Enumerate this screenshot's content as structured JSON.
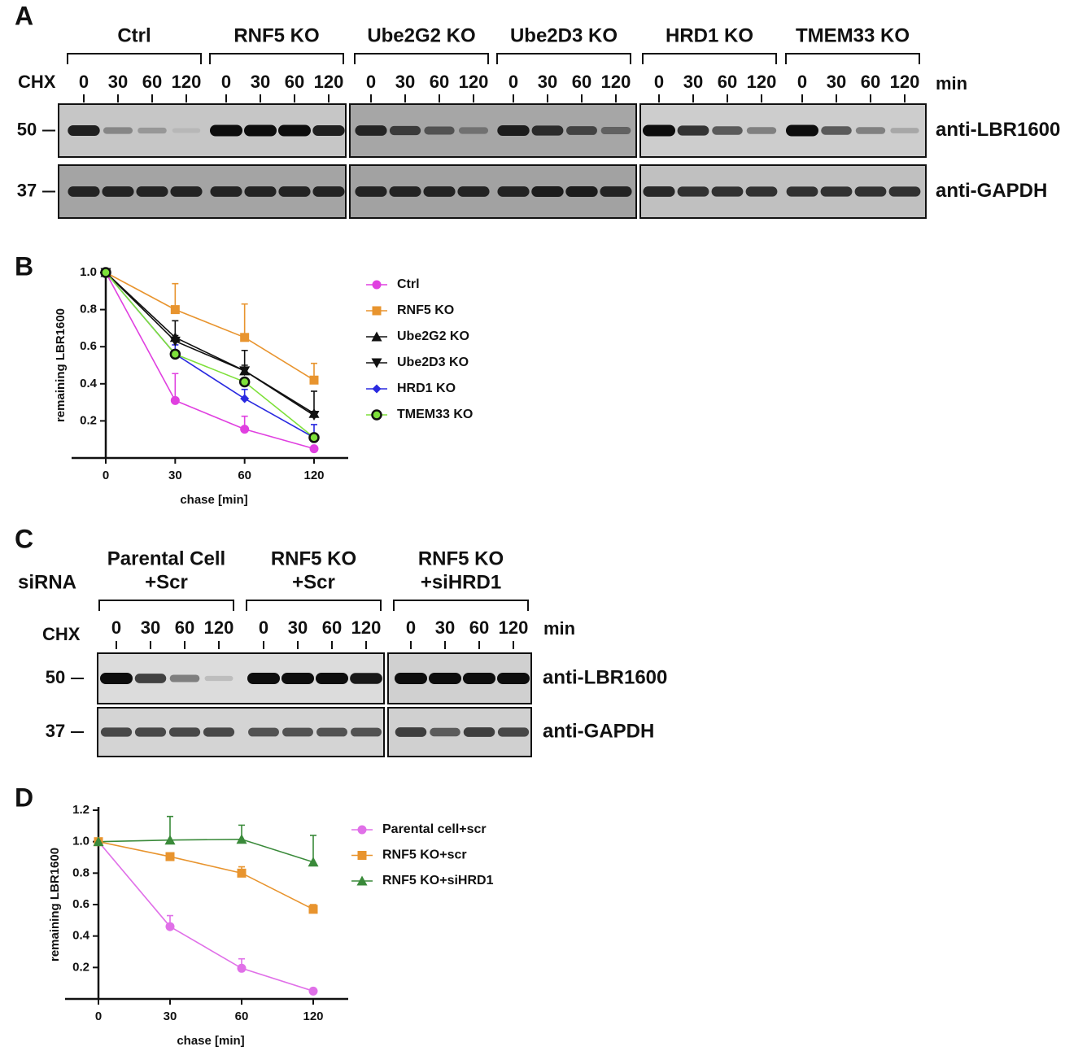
{
  "blots": [
    {
      "panel_label": "A",
      "treatment": "CHX",
      "time_unit": "min",
      "groups": [
        "Ctrl",
        "RNF5 KO",
        "Ube2G2 KO",
        "Ube2D3 KO",
        "HRD1 KO",
        "TMEM33 KO"
      ],
      "timepoints": [
        0,
        30,
        60,
        120
      ],
      "markers": [
        50,
        37
      ],
      "antibodies": [
        "anti-LBR1600",
        "anti-GAPDH"
      ]
    },
    {
      "panel_label": "C",
      "condition_label": "siRNA",
      "treatment": "CHX",
      "time_unit": "min",
      "groups": [
        [
          "Parental Cell",
          "+Scr"
        ],
        [
          "RNF5 KO",
          "+Scr"
        ],
        [
          "RNF5 KO",
          "+siHRD1"
        ]
      ],
      "timepoints": [
        0,
        30,
        60,
        120
      ],
      "markers": [
        50,
        37
      ],
      "antibodies": [
        "anti-LBR1600",
        "anti-GAPDH"
      ]
    }
  ],
  "chart_data": [
    {
      "panel_label": "B",
      "type": "line",
      "xlabel": "chase [min]",
      "ylabel": "remaining LBR1600",
      "categories": [
        "0",
        "30",
        "60",
        "120"
      ],
      "ylim": [
        0,
        1
      ],
      "yticks": [
        0.2,
        0.4,
        0.6,
        0.8,
        {
          "value": 1,
          "label": "1.0"
        }
      ],
      "legend": "right",
      "series": [
        {
          "name": "Ctrl",
          "color": "#e040e0",
          "marker": "circle",
          "values": [
            1,
            0.31,
            0.155,
            0.05
          ],
          "errors": [
            0,
            0.145,
            0.07,
            0.01
          ]
        },
        {
          "name": "RNF5 KO",
          "color": "#e8942e",
          "marker": "square",
          "values": [
            1,
            0.8,
            0.65,
            0.42
          ],
          "errors": [
            0,
            0.14,
            0.18,
            0.09
          ]
        },
        {
          "name": "Ube2G2 KO",
          "color": "#111111",
          "marker": "triangle-up",
          "values": [
            1,
            0.65,
            0.47,
            0.24
          ],
          "errors": [
            0,
            0.09,
            0.11,
            0.12
          ]
        },
        {
          "name": "Ube2D3 KO",
          "color": "#111111",
          "marker": "triangle-down",
          "values": [
            1,
            0.63,
            0.47,
            0.23
          ],
          "errors": [
            0,
            0.03,
            0.03,
            0.02
          ]
        },
        {
          "name": "HRD1 KO",
          "color": "#2a2ae0",
          "marker": "diamond",
          "values": [
            1,
            0.56,
            0.32,
            0.11
          ],
          "errors": [
            0,
            0.05,
            0.05,
            0.07
          ]
        },
        {
          "name": "TMEM33 KO",
          "color": "#7ee03a",
          "marker": "circle-outline",
          "values": [
            1,
            0.56,
            0.41,
            0.11
          ],
          "errors": [
            0,
            0.02,
            0.02,
            0.02
          ]
        }
      ]
    },
    {
      "panel_label": "D",
      "type": "line",
      "xlabel": "chase [min]",
      "ylabel": "remaining LBR1600",
      "categories": [
        "0",
        "30",
        "60",
        "120"
      ],
      "ylim": [
        0,
        1.2
      ],
      "yticks": [
        0.2,
        0.4,
        0.6,
        0.8,
        {
          "value": 1,
          "label": "1.0"
        },
        1.2
      ],
      "legend": "right",
      "series": [
        {
          "name": "Parental cell+scr",
          "color": "#e070e8",
          "marker": "circle",
          "values": [
            1,
            0.46,
            0.195,
            0.05
          ],
          "errors": [
            0,
            0.07,
            0.06,
            0
          ]
        },
        {
          "name": "RNF5 KO+scr",
          "color": "#e8942e",
          "marker": "square",
          "values": [
            1,
            0.905,
            0.8,
            0.57
          ],
          "errors": [
            0,
            0,
            0.04,
            0.03
          ]
        },
        {
          "name": "RNF5 KO+siHRD1",
          "color": "#3a8a3a",
          "marker": "triangle-up",
          "values": [
            1,
            1.01,
            1.015,
            0.87
          ],
          "errors": [
            0,
            0.15,
            0.09,
            0.17
          ]
        }
      ]
    }
  ]
}
